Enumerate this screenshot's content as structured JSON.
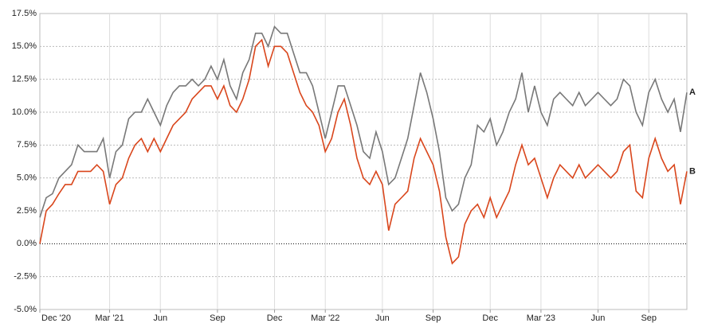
{
  "chart_data": {
    "type": "line",
    "categories": [
      "Dec '20",
      null,
      null,
      null,
      null,
      null,
      null,
      null,
      null,
      null,
      null,
      "Mar '21",
      null,
      null,
      null,
      null,
      null,
      null,
      null,
      "Jun",
      null,
      null,
      null,
      null,
      null,
      null,
      null,
      null,
      "Sep",
      null,
      null,
      null,
      null,
      null,
      null,
      null,
      null,
      "Dec",
      null,
      null,
      null,
      null,
      null,
      null,
      null,
      "Mar '22",
      null,
      null,
      null,
      null,
      null,
      null,
      null,
      null,
      "Jun",
      null,
      null,
      null,
      null,
      null,
      null,
      null,
      "Sep",
      null,
      null,
      null,
      null,
      null,
      null,
      null,
      null,
      "Dec",
      null,
      null,
      null,
      null,
      null,
      null,
      null,
      "Mar '23",
      null,
      null,
      null,
      null,
      null,
      null,
      null,
      null,
      "Jun",
      null,
      null,
      null,
      null,
      null,
      null,
      null,
      "Sep",
      null,
      null,
      null,
      null,
      null,
      null
    ],
    "series": [
      {
        "name": "A",
        "color": "#787878",
        "values": [
          2,
          3.5,
          3.8,
          5,
          5.5,
          6,
          7.5,
          7,
          7,
          7,
          8,
          5,
          7,
          7.5,
          9.5,
          10,
          10,
          11,
          10,
          9,
          10.5,
          11.5,
          12,
          12,
          12.5,
          12,
          12.5,
          13.5,
          12.5,
          14,
          12,
          11,
          13,
          14,
          16,
          16,
          15,
          16.5,
          16,
          16,
          14.5,
          13,
          13,
          12,
          10,
          8,
          10,
          12,
          12,
          10.5,
          9,
          7,
          6.5,
          8.5,
          7,
          4.5,
          5,
          6.5,
          8,
          10.5,
          13,
          11.5,
          9.5,
          7,
          3.5,
          2.5,
          3,
          5,
          6,
          9,
          8.5,
          9.5,
          7.5,
          8.5,
          10,
          11,
          13,
          10,
          12,
          10,
          9,
          11,
          11.5,
          11,
          10.5,
          11.5,
          10.5,
          11,
          11.5,
          11,
          10.5,
          11,
          12.5,
          12,
          10,
          9,
          11.5,
          12.5,
          11,
          10,
          11,
          8.5,
          11.5
        ]
      },
      {
        "name": "B",
        "color": "#d9461c",
        "values": [
          0,
          2.5,
          3,
          3.8,
          4.5,
          4.5,
          5.5,
          5.5,
          5.5,
          6,
          5.5,
          3,
          4.5,
          5,
          6.5,
          7.5,
          8,
          7,
          8,
          7,
          8,
          9,
          9.5,
          10,
          11,
          11.5,
          12,
          12,
          11,
          12,
          10.5,
          10,
          11,
          12.5,
          15,
          15.5,
          13.5,
          15,
          15,
          14.5,
          13,
          11.5,
          10.5,
          10,
          9,
          7,
          8,
          10,
          11,
          9,
          6.5,
          5,
          4.5,
          5.5,
          4.5,
          1,
          3,
          3.5,
          4,
          6.5,
          8,
          7,
          6,
          4,
          0.5,
          -1.5,
          -1,
          1.5,
          2.5,
          3,
          2,
          3.5,
          2,
          3,
          4,
          6,
          7.5,
          6,
          6.5,
          5,
          3.5,
          5,
          6,
          5.5,
          5,
          6,
          5,
          5.5,
          6,
          5.5,
          5,
          5.5,
          7,
          7.5,
          4,
          3.5,
          6.5,
          8,
          6.5,
          5.5,
          6,
          3,
          5.5
        ]
      }
    ],
    "ylim": [
      -5,
      17.5
    ],
    "yticks": [
      {
        "value": -5,
        "label": "-5.0%"
      },
      {
        "value": -2.5,
        "label": "-2.5%"
      },
      {
        "value": 0,
        "label": "0.0%"
      },
      {
        "value": 2.5,
        "label": "2.5%"
      },
      {
        "value": 5,
        "label": "5.0%"
      },
      {
        "value": 7.5,
        "label": "7.5%"
      },
      {
        "value": 10,
        "label": "10.0%"
      },
      {
        "value": 12.5,
        "label": "12.5%"
      },
      {
        "value": 15,
        "label": "15.0%"
      },
      {
        "value": 17.5,
        "label": "17.5%"
      }
    ],
    "grid": true
  }
}
